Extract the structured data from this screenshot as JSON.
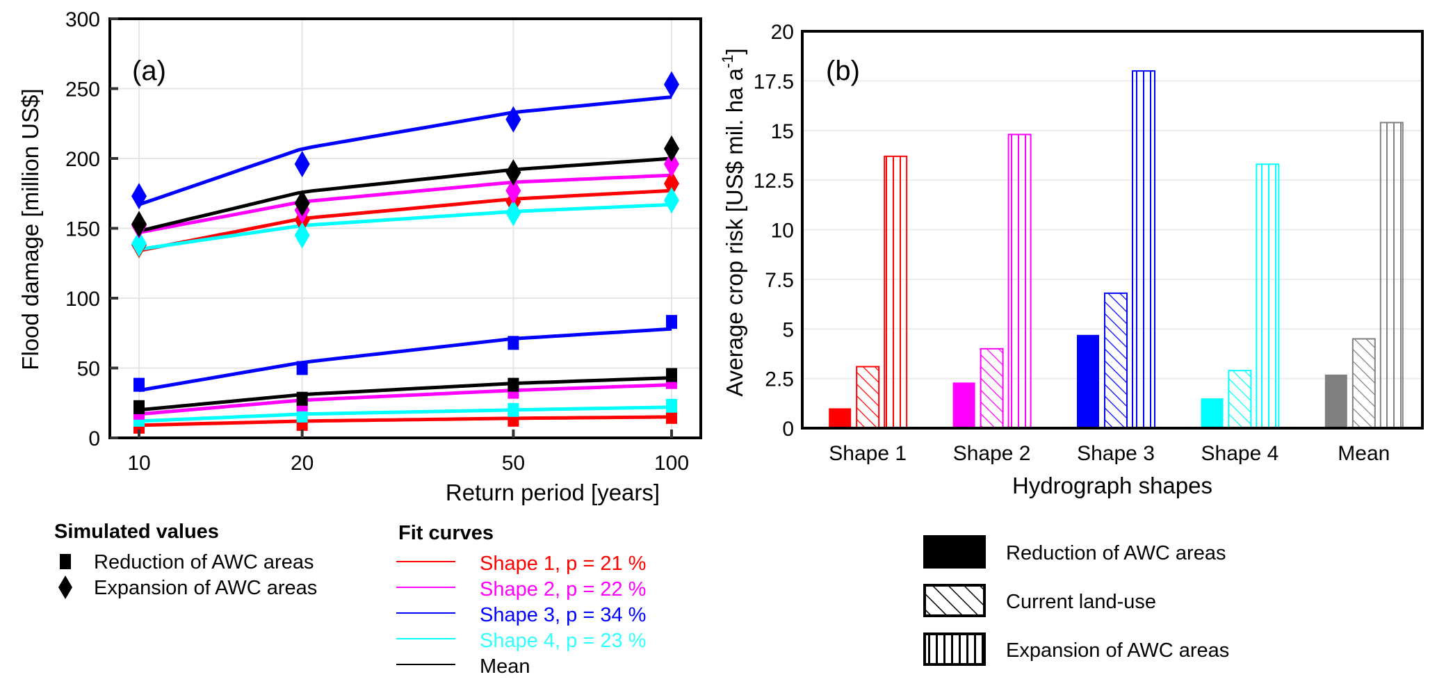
{
  "chart_data": [
    {
      "id": "a",
      "type": "scatter",
      "panel_label": "(a)",
      "title": "",
      "xlabel": "Return period [years]",
      "ylabel": "Flood damage [million US$]",
      "x_ticks": [
        "10",
        "20",
        "50",
        "100"
      ],
      "x": [
        10,
        20,
        50,
        100
      ],
      "x_scale": "gumbel-probability",
      "ylim": [
        0,
        300
      ],
      "y_ticks": [
        0,
        50,
        100,
        150,
        200,
        250,
        300
      ],
      "grid": true,
      "series": [
        {
          "name": "Shape 1",
          "color": "#ff0000",
          "expansion": [
            138,
            156,
            169,
            182
          ],
          "reduction": [
            8,
            10,
            13,
            15
          ],
          "fit_expansion": [
            134,
            157,
            171,
            177
          ],
          "fit_reduction": [
            9,
            12,
            14,
            15
          ]
        },
        {
          "name": "Shape 2",
          "color": "#ff00ff",
          "expansion": [
            152,
            163,
            177,
            196
          ],
          "reduction": [
            18,
            24,
            33,
            40
          ],
          "fit_expansion": [
            147,
            169,
            183,
            188
          ],
          "fit_reduction": [
            17,
            27,
            34,
            38
          ]
        },
        {
          "name": "Shape 3",
          "color": "#0000ff",
          "expansion": [
            173,
            196,
            228,
            253
          ],
          "reduction": [
            38,
            50,
            68,
            83
          ],
          "fit_expansion": [
            167,
            207,
            233,
            244
          ],
          "fit_reduction": [
            34,
            54,
            71,
            78
          ]
        },
        {
          "name": "Shape 4",
          "color": "#00ffff",
          "expansion": [
            139,
            145,
            161,
            170
          ],
          "reduction": [
            13,
            16,
            20,
            23
          ],
          "fit_expansion": [
            135,
            152,
            162,
            167
          ],
          "fit_reduction": [
            12,
            17,
            20,
            22
          ]
        },
        {
          "name": "Mean",
          "color": "#000000",
          "expansion": [
            153,
            168,
            190,
            207
          ],
          "reduction": [
            22,
            28,
            38,
            45
          ],
          "fit_expansion": [
            148,
            176,
            192,
            200
          ],
          "fit_reduction": [
            20,
            31,
            39,
            43
          ]
        }
      ],
      "legend": {
        "simulated_title": "Simulated values",
        "simulated": [
          {
            "marker": "square",
            "label": "Reduction of AWC areas"
          },
          {
            "marker": "diamond",
            "label": "Expansion of AWC areas"
          }
        ],
        "fit_title": "Fit curves",
        "fit": [
          {
            "label": "Shape 1, p = 21 %",
            "color": "#ff0000"
          },
          {
            "label": "Shape 2, p = 22 %",
            "color": "#ff00ff"
          },
          {
            "label": "Shape 3, p = 34 %",
            "color": "#0000ff"
          },
          {
            "label": "Shape 4, p = 23 %",
            "color": "#00ffff"
          },
          {
            "label": "Mean",
            "color": "#000000"
          }
        ]
      }
    },
    {
      "id": "b",
      "type": "bar",
      "panel_label": "(b)",
      "title": "",
      "xlabel": "Hydrograph shapes",
      "ylabel": "Average crop risk [US$ mil. ha a",
      "ylabel_sup": "-1",
      "ylabel_end": "]",
      "categories": [
        "Shape 1",
        "Shape 2",
        "Shape 3",
        "Shape 4",
        "Mean"
      ],
      "category_colors": [
        "#ff0000",
        "#ff00ff",
        "#0000ff",
        "#00ffff",
        "#808080"
      ],
      "ylim": [
        0,
        20
      ],
      "y_ticks": [
        "0",
        "2.5",
        "5",
        "7.5",
        "10",
        "12.5",
        "15",
        "17.5",
        "20"
      ],
      "grid": true,
      "series": [
        {
          "name": "Reduction of AWC areas",
          "pattern": "solid",
          "values": [
            1.0,
            2.3,
            4.7,
            1.5,
            2.7
          ]
        },
        {
          "name": "Current land-use",
          "pattern": "diagonal",
          "values": [
            3.1,
            4.0,
            6.8,
            2.9,
            4.5
          ]
        },
        {
          "name": "Expansion of AWC areas",
          "pattern": "vertical",
          "values": [
            13.7,
            14.8,
            18.0,
            13.3,
            15.4
          ]
        }
      ],
      "legend_position": "bottom"
    }
  ]
}
